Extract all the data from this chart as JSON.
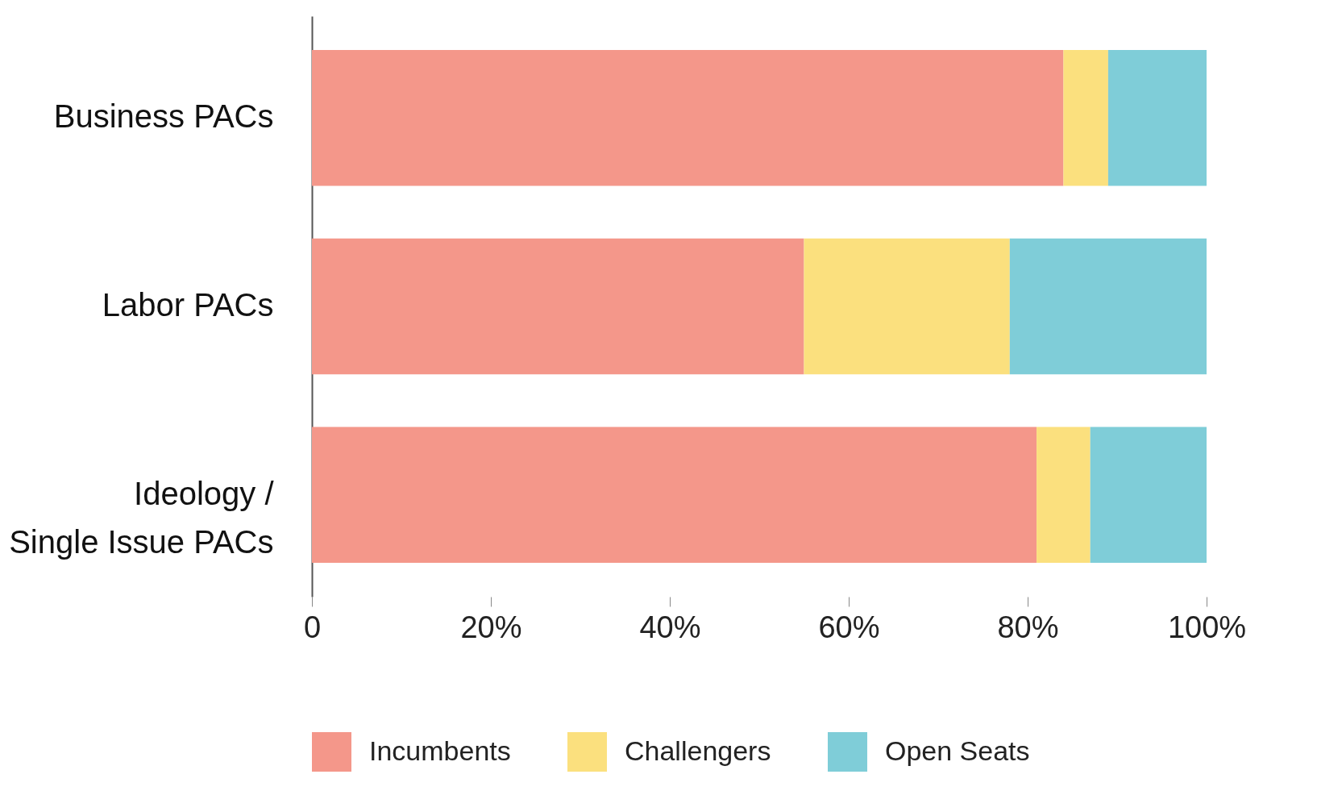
{
  "chart_data": {
    "type": "bar",
    "orientation": "horizontal",
    "stacked": true,
    "categories": [
      "Business PACs",
      "Labor PACs",
      "Ideology / Single Issue PACs"
    ],
    "series": [
      {
        "name": "Incumbents",
        "color": "#f4978a",
        "values": [
          84,
          55,
          81
        ]
      },
      {
        "name": "Challengers",
        "color": "#fbe07e",
        "values": [
          5,
          23,
          6
        ]
      },
      {
        "name": "Open Seats",
        "color": "#7fcdd8",
        "values": [
          11,
          22,
          13
        ]
      }
    ],
    "xlim": [
      0,
      100
    ],
    "xticks": [
      0,
      {
        "value": 20,
        "label": "20%"
      },
      {
        "value": 40,
        "label": "40%"
      },
      {
        "value": 60,
        "label": "60%"
      },
      {
        "value": 80,
        "label": "80%"
      },
      {
        "value": 100,
        "label": "100%"
      }
    ],
    "grid": false,
    "legend": "bottom"
  }
}
